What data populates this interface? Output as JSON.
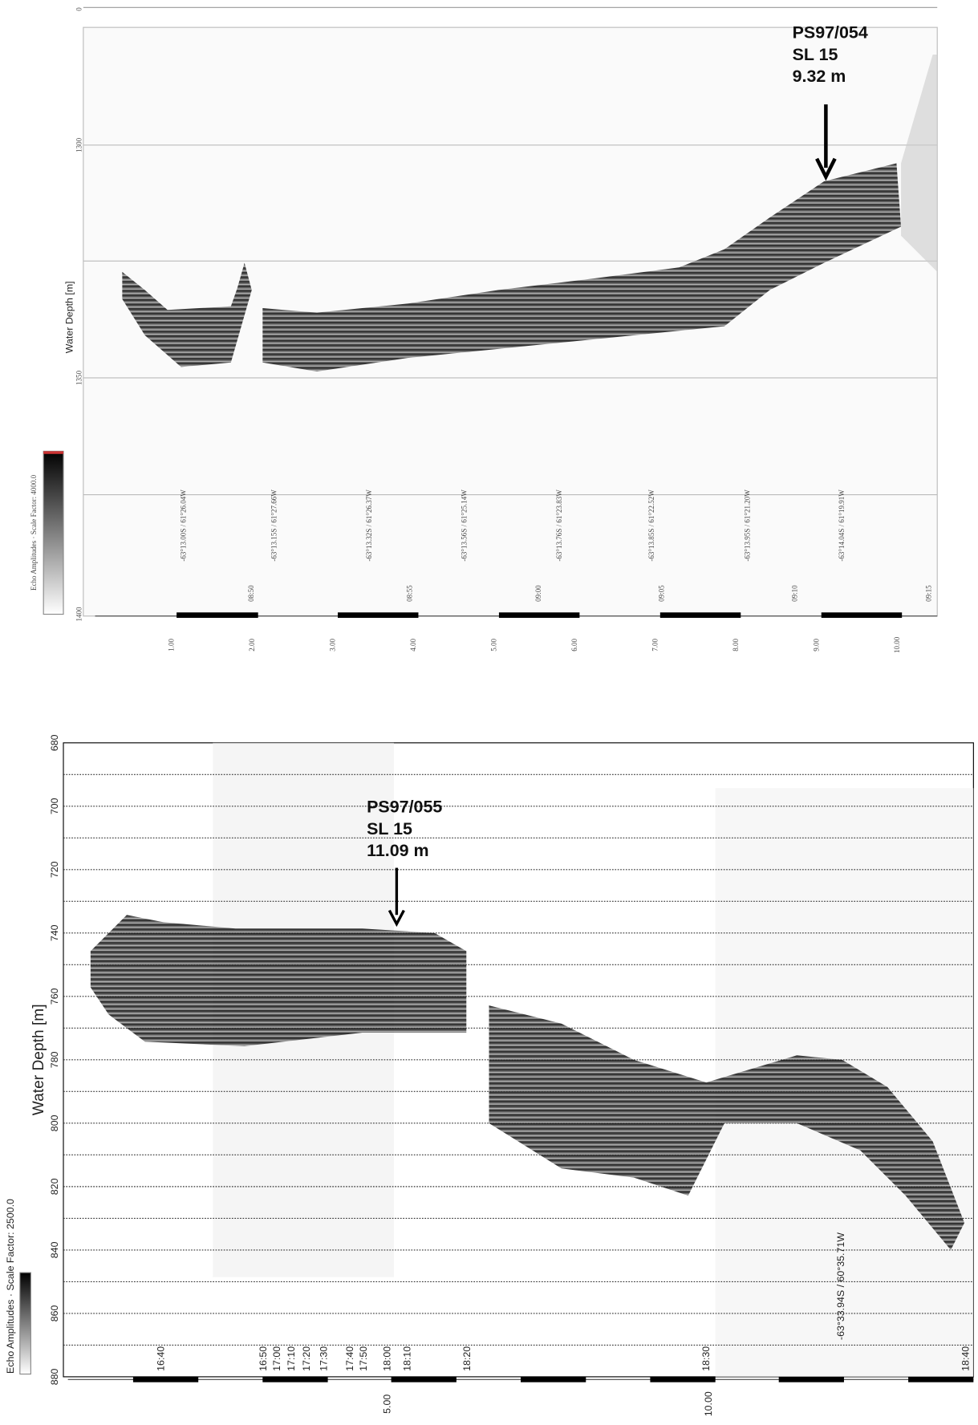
{
  "top_panel": {
    "annotation": [
      "PS97/054",
      "SL 15",
      "9.32 m"
    ],
    "y_axis_label": "Water Depth [m]",
    "y_ticks": [
      "0",
      "1300",
      "1350",
      "1400"
    ],
    "times": [
      "08:50",
      "08:55",
      "09:00",
      "09:05",
      "09:10",
      "09:15"
    ],
    "coordinates": [
      "-63°13.00S / 61°26.04W",
      "-63°13.15S / 61°27.66W",
      "-63°13.32S / 61°26.37W",
      "-63°13.56S / 61°25.14W",
      "-63°13.76S / 61°23.83W",
      "-63°13.85S / 61°22.52W",
      "-63°13.95S / 61°21.20W",
      "-63°14.04S / 61°19.91W"
    ],
    "distances": [
      "1.00",
      "2.00",
      "3.00",
      "4.00",
      "5.00",
      "6.00",
      "7.00",
      "8.00",
      "9.00",
      "10.00"
    ],
    "colorbar_label": "Echo Amplitudes · Scale Factor: 4000.0"
  },
  "bottom_panel": {
    "annotation": [
      "PS97/055",
      "SL 15",
      "11.09 m"
    ],
    "y_axis_label": "Water Depth [m]",
    "y_ticks": [
      "680",
      "700",
      "720",
      "740",
      "760",
      "780",
      "800",
      "820",
      "840",
      "860",
      "880"
    ],
    "times": [
      "16:40",
      "16:50",
      "17:00",
      "17:10",
      "17:20",
      "17:30",
      "17:40",
      "17:50",
      "18:00",
      "18:10",
      "18:20",
      "18:30",
      "18:40"
    ],
    "coordinates": [
      "-63°33.94S / 60°35.71W"
    ],
    "distances": [
      "5.00",
      "10.00"
    ],
    "colorbar_label": "Echo Amplitudes · Scale Factor: 2500.0"
  }
}
